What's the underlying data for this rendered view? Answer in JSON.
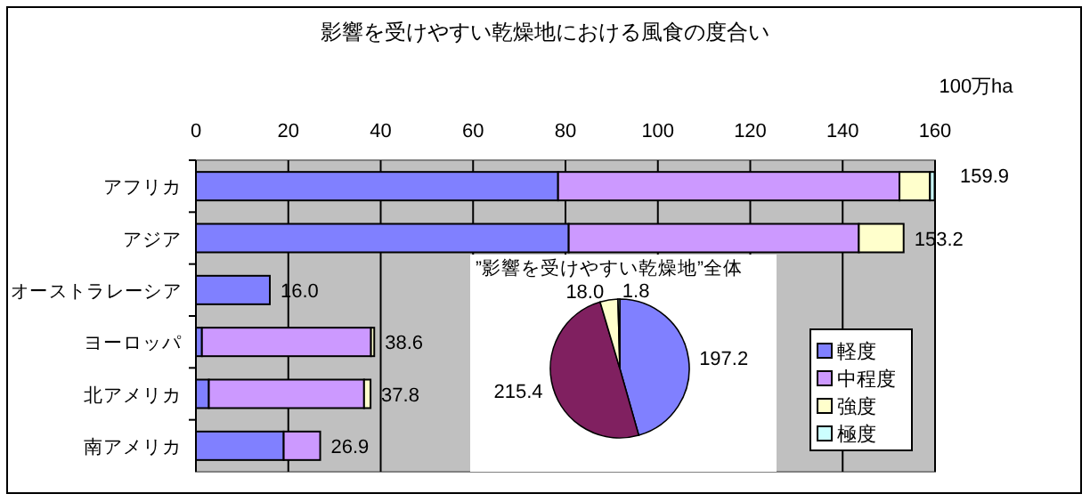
{
  "chart_data": [
    {
      "type": "bar",
      "title": "影響を受けやすい乾燥地における風食の度合い",
      "xlabel": "100万ha",
      "orientation": "horizontal",
      "stacked": true,
      "categories": [
        "アフリカ",
        "アジア",
        "オーストラレーシア",
        "ヨーロッパ",
        "北アメリカ",
        "南アメリカ"
      ],
      "series": [
        {
          "name": "軽度",
          "color": "#8080ff",
          "values": [
            78.4,
            80.7,
            16.0,
            1.3,
            2.8,
            19.0
          ]
        },
        {
          "name": "中程度",
          "color": "#cc99ff",
          "values": [
            73.9,
            62.8,
            0,
            36.6,
            33.6,
            7.9
          ]
        },
        {
          "name": "強度",
          "color": "#ffffcc",
          "values": [
            6.6,
            9.7,
            0,
            0.7,
            1.4,
            0
          ]
        },
        {
          "name": "極度",
          "color": "#ccffff",
          "values": [
            1.0,
            0,
            0,
            0,
            0,
            0
          ]
        }
      ],
      "xlim": [
        0,
        160
      ],
      "xticks": [
        0,
        20,
        40,
        60,
        80,
        100,
        120,
        140,
        160
      ],
      "grid": "x",
      "legend": "bottom right",
      "totals": [
        "159.9",
        "153.2",
        "16.0",
        "38.6",
        "37.8",
        "26.9"
      ]
    },
    {
      "type": "pie",
      "title": "”影響を受けやすい乾燥地”全体",
      "categories": [
        null,
        null,
        null,
        null
      ],
      "values": [
        197.2,
        215.4,
        18.0,
        1.8
      ],
      "colors": [
        "#8080ff",
        "#802060",
        "#ffffcc",
        "#ccffff"
      ],
      "value_labels": [
        "197.2",
        "215.4",
        "18.0",
        "1.8"
      ]
    }
  ]
}
